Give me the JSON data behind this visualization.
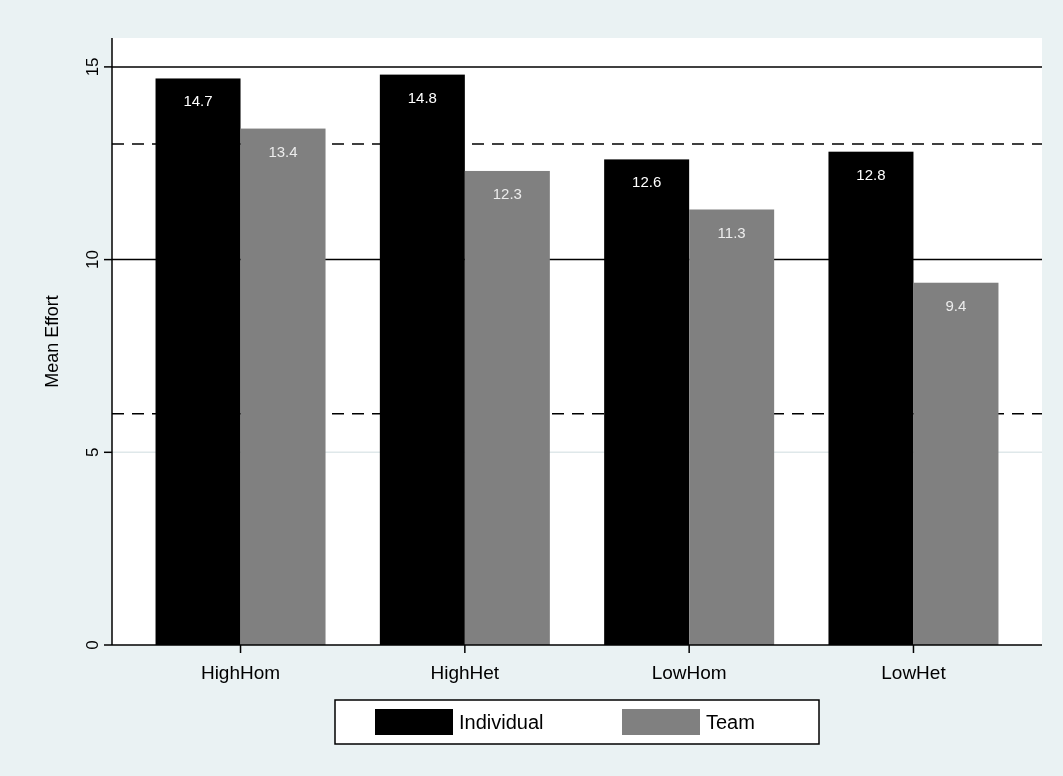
{
  "chart_data": {
    "type": "bar",
    "ylabel": "Mean Effort",
    "categories": [
      "HighHom",
      "HighHet",
      "LowHom",
      "LowHet"
    ],
    "series": [
      {
        "name": "Individual",
        "color": "#000000",
        "values": [
          14.7,
          14.8,
          12.6,
          12.8
        ]
      },
      {
        "name": "Team",
        "color": "#808080",
        "values": [
          13.4,
          12.3,
          11.3,
          9.4
        ]
      }
    ],
    "ylim": [
      0,
      15.75
    ],
    "yticks": [
      0,
      5,
      10,
      15
    ],
    "data_labels": true,
    "legend": "bottom",
    "ref_lines": [
      {
        "axis": "y",
        "value": 5,
        "line_style": "solid",
        "color": "#dfe8ea"
      },
      {
        "axis": "y",
        "value": 10,
        "line_style": "solid"
      },
      {
        "axis": "y",
        "value": 15,
        "line_style": "solid"
      },
      {
        "axis": "y",
        "value": 13,
        "line_style": "dashed"
      },
      {
        "axis": "y",
        "value": 6,
        "line_style": "dashed"
      }
    ]
  }
}
